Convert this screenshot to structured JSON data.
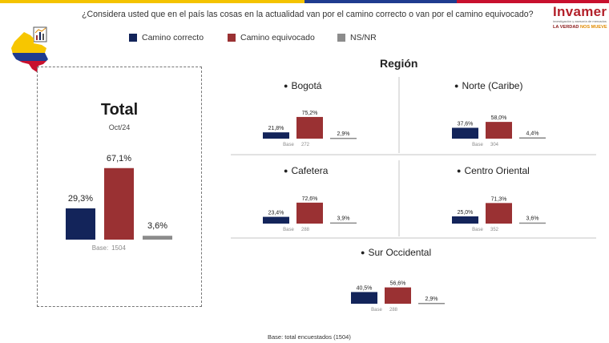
{
  "header": {
    "question": "¿Considera usted que en el país las cosas en la actualidad van por el camino correcto o van por el camino equivocado?"
  },
  "logo": {
    "name": "Invamer",
    "subtitle": "investigación y asesoría de mercados",
    "tagline_part1": "LA VERDAD",
    "tagline_part2": "NOS MUEVE"
  },
  "legend": [
    {
      "label": "Camino correcto",
      "color": "#13245a"
    },
    {
      "label": "Camino equivocado",
      "color": "#9a3133"
    },
    {
      "label": "NS/NR",
      "color": "#8c8c8c"
    }
  ],
  "total": {
    "title": "Total",
    "period": "Oct/24"
  },
  "region": {
    "title": "Región",
    "bullet": "●"
  },
  "footnote": "Base: total encuestados (1504)",
  "colors": {
    "correcto": "#13245a",
    "equivocado": "#9a3133",
    "nsnr": "#8c8c8c"
  },
  "chart_data": [
    {
      "type": "bar",
      "title": "Total",
      "categories": [
        "Camino correcto",
        "Camino equivocado",
        "NS/NR"
      ],
      "values": [
        29.3,
        67.1,
        3.6
      ],
      "labels": [
        "29,3%",
        "67,1%",
        "3,6%"
      ],
      "base_label": "Base:",
      "base_value": "1504",
      "ylim": [
        0,
        100
      ]
    },
    {
      "type": "bar",
      "title": "Bogotá",
      "categories": [
        "Camino correcto",
        "Camino equivocado",
        "NS/NR"
      ],
      "values": [
        21.8,
        75.2,
        2.9
      ],
      "labels": [
        "21,8%",
        "75,2%",
        "2,9%"
      ],
      "base_label": "Base",
      "base_value": "272",
      "ylim": [
        0,
        100
      ]
    },
    {
      "type": "bar",
      "title": "Norte (Caribe)",
      "categories": [
        "Camino correcto",
        "Camino equivocado",
        "NS/NR"
      ],
      "values": [
        37.6,
        58.0,
        4.4
      ],
      "labels": [
        "37,6%",
        "58,0%",
        "4,4%"
      ],
      "base_label": "Base",
      "base_value": "304",
      "ylim": [
        0,
        100
      ]
    },
    {
      "type": "bar",
      "title": "Cafetera",
      "categories": [
        "Camino correcto",
        "Camino equivocado",
        "NS/NR"
      ],
      "values": [
        23.4,
        72.6,
        3.9
      ],
      "labels": [
        "23,4%",
        "72,6%",
        "3,9%"
      ],
      "base_label": "Base",
      "base_value": "288",
      "ylim": [
        0,
        100
      ]
    },
    {
      "type": "bar",
      "title": "Centro Oriental",
      "categories": [
        "Camino correcto",
        "Camino equivocado",
        "NS/NR"
      ],
      "values": [
        25.0,
        71.3,
        3.6
      ],
      "labels": [
        "25,0%",
        "71,3%",
        "3,6%"
      ],
      "base_label": "Base",
      "base_value": "352",
      "ylim": [
        0,
        100
      ]
    },
    {
      "type": "bar",
      "title": "Sur Occidental",
      "categories": [
        "Camino correcto",
        "Camino equivocado",
        "NS/NR"
      ],
      "values": [
        40.5,
        56.6,
        2.9
      ],
      "labels": [
        "40,5%",
        "56,6%",
        "2,9%"
      ],
      "base_label": "Base",
      "base_value": "288",
      "ylim": [
        0,
        100
      ]
    }
  ]
}
